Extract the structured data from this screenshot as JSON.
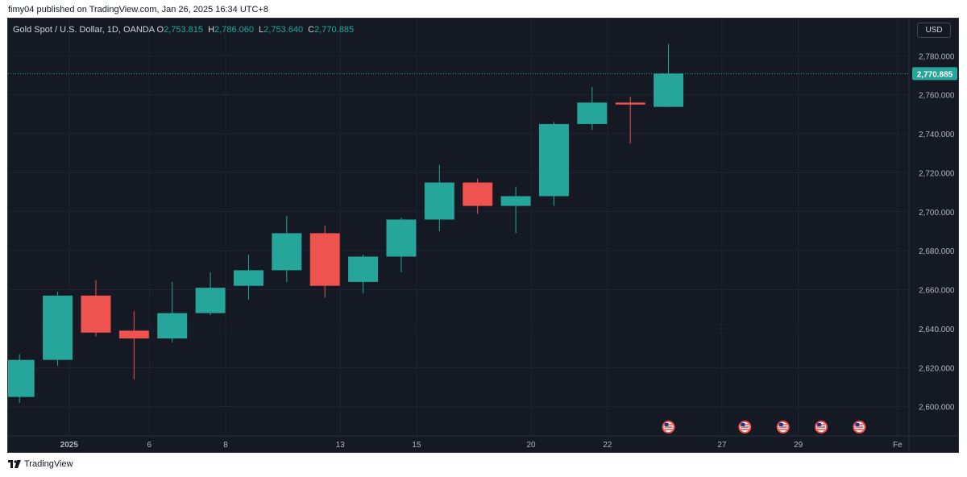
{
  "caption": "fimy04 published on TradingView.com, Jan 26, 2025 16:34 UTC+8",
  "footer": {
    "brand": "TradingView",
    "logo_icon": "tradingview-logo-icon"
  },
  "chart_data": {
    "type": "candlestick",
    "symbol": "Gold Spot / U.S. Dollar, 1D, OANDA",
    "ohlc_readout": {
      "o_label": "O",
      "o": "2,753.815",
      "h_label": "H",
      "h": "2,786.060",
      "l_label": "L",
      "l": "2,753.640",
      "c_label": "C",
      "c": "2,770.885"
    },
    "currency": "USD",
    "last_price_label": "2,770.885",
    "last_price": 2770.885,
    "ylim": [
      2585,
      2795
    ],
    "y_ticks": [
      2600,
      2620,
      2640,
      2660,
      2680,
      2700,
      2720,
      2740,
      2760,
      2780
    ],
    "y_tick_labels": [
      "2,600.000",
      "2,620.000",
      "2,640.000",
      "2,660.000",
      "2,680.000",
      "2,700.000",
      "2,720.000",
      "2,740.000",
      "2,760.000",
      "2,780.000"
    ],
    "x_index_range": [
      -0.3,
      23.3
    ],
    "x_ticks": [
      {
        "idx": 1.3,
        "label": "2025",
        "bold": true
      },
      {
        "idx": 3.4,
        "label": "6"
      },
      {
        "idx": 5.4,
        "label": "8"
      },
      {
        "idx": 8.4,
        "label": "13"
      },
      {
        "idx": 10.4,
        "label": "15"
      },
      {
        "idx": 13.4,
        "label": "20"
      },
      {
        "idx": 15.4,
        "label": "22"
      },
      {
        "idx": 18.4,
        "label": "27"
      },
      {
        "idx": 20.4,
        "label": "29"
      },
      {
        "idx": 23.0,
        "label": "Fe"
      }
    ],
    "candles": [
      {
        "o": 2605,
        "h": 2627,
        "l": 2602,
        "c": 2624
      },
      {
        "o": 2624,
        "h": 2659,
        "l": 2621,
        "c": 2657
      },
      {
        "o": 2657,
        "h": 2665,
        "l": 2636,
        "c": 2638
      },
      {
        "o": 2639,
        "h": 2649,
        "l": 2614,
        "c": 2635
      },
      {
        "o": 2635,
        "h": 2664,
        "l": 2633,
        "c": 2648
      },
      {
        "o": 2648,
        "h": 2669,
        "l": 2647,
        "c": 2661
      },
      {
        "o": 2662,
        "h": 2678,
        "l": 2655,
        "c": 2670
      },
      {
        "o": 2670,
        "h": 2698,
        "l": 2664,
        "c": 2689
      },
      {
        "o": 2689,
        "h": 2693,
        "l": 2656,
        "c": 2662
      },
      {
        "o": 2664,
        "h": 2678,
        "l": 2658,
        "c": 2677
      },
      {
        "o": 2677,
        "h": 2697,
        "l": 2669,
        "c": 2696
      },
      {
        "o": 2696,
        "h": 2724,
        "l": 2690,
        "c": 2715
      },
      {
        "o": 2715,
        "h": 2717,
        "l": 2699,
        "c": 2703
      },
      {
        "o": 2703,
        "h": 2713,
        "l": 2689,
        "c": 2708
      },
      {
        "o": 2708,
        "h": 2746,
        "l": 2703,
        "c": 2745
      },
      {
        "o": 2745,
        "h": 2764,
        "l": 2742,
        "c": 2756
      },
      {
        "o": 2756,
        "h": 2759,
        "l": 2735,
        "c": 2755
      },
      {
        "o": 2753.815,
        "h": 2786.06,
        "l": 2753.64,
        "c": 2770.885
      }
    ],
    "event_markers": [
      17,
      19,
      20,
      21,
      22
    ],
    "event_icon": "us-flag-icon",
    "colors": {
      "up": "#26a69a",
      "down": "#ef5350",
      "background": "#151924",
      "grid": "#1f2330",
      "axis_text": "#b2b5be",
      "price_label_bg": "#26a69a"
    }
  }
}
